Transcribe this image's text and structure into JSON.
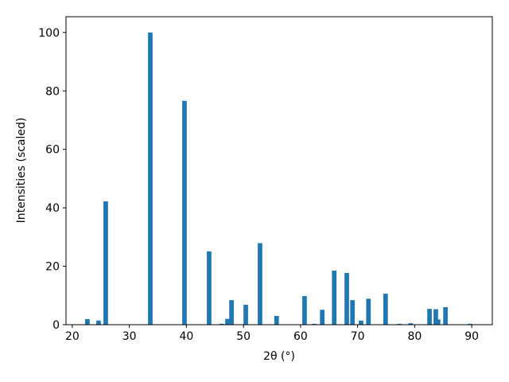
{
  "chart_data": {
    "type": "bar",
    "xlabel": "2θ (°)",
    "ylabel": "Intensities (scaled)",
    "x": [
      22.65,
      24.6,
      25.86,
      33.67,
      39.66,
      43.98,
      46.2,
      47.2,
      47.9,
      50.4,
      52.9,
      55.8,
      60.7,
      62.4,
      63.8,
      65.9,
      68.1,
      69.1,
      70.6,
      71.9,
      74.9,
      77.3,
      79.3,
      82.6,
      83.7,
      84.1,
      85.4,
      89.7
    ],
    "values": [
      1.9,
      1.4,
      42.2,
      100,
      76.6,
      25.1,
      0.3,
      2.0,
      8.4,
      6.8,
      27.9,
      3.0,
      9.8,
      0.3,
      5.1,
      18.5,
      17.7,
      8.4,
      1.4,
      8.9,
      10.6,
      0.3,
      0.5,
      5.4,
      5.3,
      1.8,
      6.0,
      0.3
    ],
    "color": "#1f77b4",
    "xlim": [
      18.9,
      93.6
    ],
    "xticks": [
      20,
      30,
      40,
      50,
      60,
      70,
      80,
      90
    ],
    "ylim": [
      0,
      105.4
    ],
    "yticks": [
      0,
      20,
      40,
      60,
      80,
      100
    ],
    "grid": false
  }
}
